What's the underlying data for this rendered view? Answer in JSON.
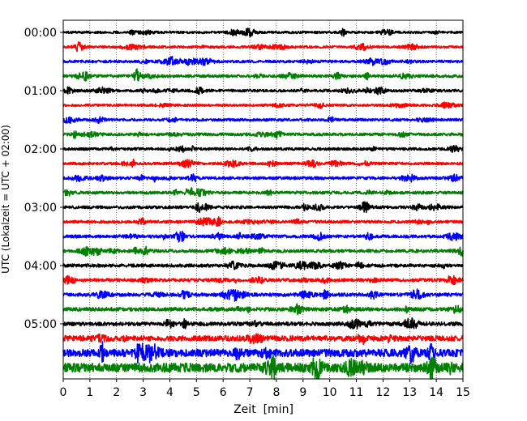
{
  "chart_data": {
    "type": "line",
    "title": "",
    "xlabel": "Zeit  [min]",
    "ylabel": "UTC (Lokalzeit = UTC + 02:00)",
    "xlim": [
      0,
      15
    ],
    "x_ticks": [
      "0",
      "1",
      "2",
      "3",
      "4",
      "5",
      "6",
      "7",
      "8",
      "9",
      "10",
      "11",
      "12",
      "13",
      "14",
      "15"
    ],
    "y_ticks": [
      "00:00",
      "01:00",
      "02:00",
      "03:00",
      "04:00",
      "05:00"
    ],
    "grid": "vertical dotted lines at each minute",
    "trace_interval_minutes": 15,
    "colors_cycle": [
      "#000000",
      "#ff0000",
      "#0000ff",
      "#008000"
    ],
    "traces": [
      {
        "start": "00:00",
        "color": "#000000",
        "amplitude": 0.25
      },
      {
        "start": "00:15",
        "color": "#ff0000",
        "amplitude": 0.25
      },
      {
        "start": "00:30",
        "color": "#0000ff",
        "amplitude": 0.28
      },
      {
        "start": "00:45",
        "color": "#008000",
        "amplitude": 0.3
      },
      {
        "start": "01:00",
        "color": "#000000",
        "amplitude": 0.28
      },
      {
        "start": "01:15",
        "color": "#ff0000",
        "amplitude": 0.25
      },
      {
        "start": "01:30",
        "color": "#0000ff",
        "amplitude": 0.28
      },
      {
        "start": "01:45",
        "color": "#008000",
        "amplitude": 0.3
      },
      {
        "start": "02:00",
        "color": "#000000",
        "amplitude": 0.28
      },
      {
        "start": "02:15",
        "color": "#ff0000",
        "amplitude": 0.28
      },
      {
        "start": "02:30",
        "color": "#0000ff",
        "amplitude": 0.3
      },
      {
        "start": "02:45",
        "color": "#008000",
        "amplitude": 0.3
      },
      {
        "start": "03:00",
        "color": "#000000",
        "amplitude": 0.3
      },
      {
        "start": "03:15",
        "color": "#ff0000",
        "amplitude": 0.3
      },
      {
        "start": "03:30",
        "color": "#0000ff",
        "amplitude": 0.32
      },
      {
        "start": "03:45",
        "color": "#008000",
        "amplitude": 0.32
      },
      {
        "start": "04:00",
        "color": "#000000",
        "amplitude": 0.34
      },
      {
        "start": "04:15",
        "color": "#ff0000",
        "amplitude": 0.34
      },
      {
        "start": "04:30",
        "color": "#0000ff",
        "amplitude": 0.36
      },
      {
        "start": "04:45",
        "color": "#008000",
        "amplitude": 0.38
      },
      {
        "start": "05:00",
        "color": "#000000",
        "amplitude": 0.4
      },
      {
        "start": "05:15",
        "color": "#ff0000",
        "amplitude": 0.55
      },
      {
        "start": "05:30",
        "color": "#0000ff",
        "amplitude": 0.8
      },
      {
        "start": "05:45",
        "color": "#008000",
        "amplitude": 0.95
      }
    ]
  }
}
